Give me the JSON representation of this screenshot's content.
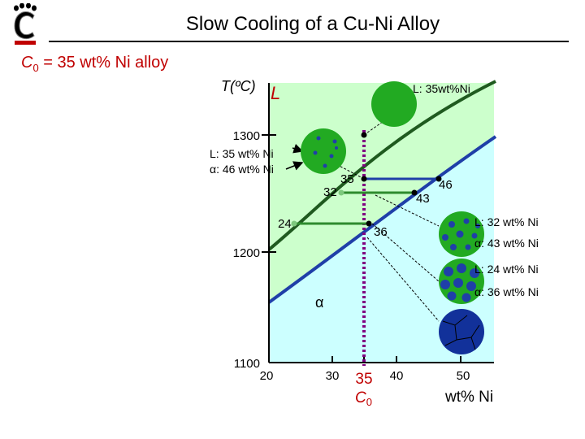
{
  "slide": {
    "title": "Slow Cooling of a Cu-Ni Alloy",
    "subtitle_prefix": "C",
    "subtitle_sub": "0",
    "subtitle_rest": " = 35 wt% Ni alloy"
  },
  "diagram": {
    "y_axis_label": "T(ºC)",
    "liquid_region_label": "L",
    "alpha_region_label": "α",
    "x_axis_label": "wt% Ni",
    "c0_label_main": "C",
    "c0_label_sub": "0",
    "y_ticks": [
      "1300",
      "1200",
      "1100"
    ],
    "x_ticks": [
      "20",
      "30",
      "35",
      "40",
      "50"
    ],
    "markers": {
      "m35": "35",
      "m46": "46",
      "m32": "32",
      "m43": "43",
      "m24": "24",
      "m36": "36"
    },
    "annotations": {
      "top_liquid": "L: 35wt%Ni",
      "a1_l": "L: 35 wt% Ni",
      "a1_a": "α: 46 wt% Ni",
      "a2_l": "L: 32 wt% Ni",
      "a2_a": "α: 43 wt% Ni",
      "a3_l": "L: 24 wt% Ni",
      "a3_a": "α: 36 wt% Ni"
    },
    "colors": {
      "liquid_region": "#ccffcc",
      "solid_region": "#ccffff",
      "liquidus": "#1f5a1f",
      "solidus": "#1f3fa8",
      "tie_line_upper": "#1f3fa8",
      "tie_line_lower": "#2e8b2e",
      "composition_line": "#800080",
      "liquid_grain": "#1f8f1f",
      "solid_grain": "#1f3fa8"
    }
  }
}
